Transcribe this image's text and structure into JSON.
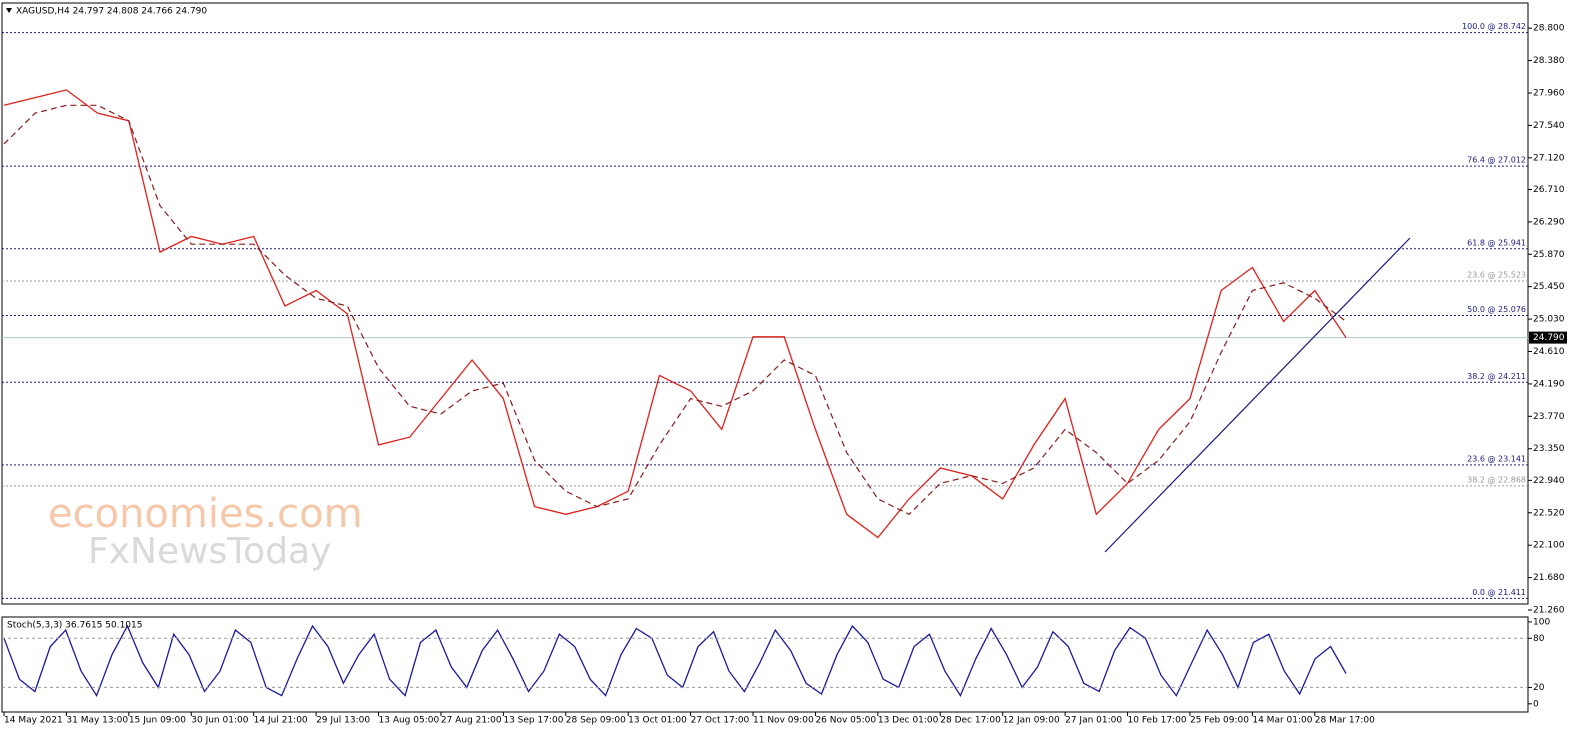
{
  "header": "XAGUSD,H4  24.797 24.808 24.766 24.790",
  "watermark": {
    "line1": "economies.com",
    "line2": "FxNewsToday"
  },
  "chart_data": [
    {
      "type": "line",
      "categories": [
        "14 May 2021",
        null,
        "31 May 13:00",
        null,
        "15 Jun 09:00",
        null,
        "30 Jun 01:00",
        null,
        "14 Jul 21:00",
        null,
        "29 Jul 13:00",
        null,
        "13 Aug 05:00",
        null,
        "27 Aug 21:00",
        null,
        "13 Sep 17:00",
        null,
        "28 Sep 09:00",
        null,
        "13 Oct 01:00",
        null,
        "27 Oct 17:00",
        null,
        "11 Nov 09:00",
        null,
        "26 Nov 05:00",
        null,
        "13 Dec 01:00",
        null,
        "28 Dec 17:00",
        null,
        "12 Jan 09:00",
        null,
        "27 Jan 01:00",
        null,
        "10 Feb 17:00",
        null,
        "25 Feb 09:00",
        null,
        "14 Mar 01:00",
        null,
        "28 Mar 17:00",
        null
      ],
      "series": [
        {
          "color": "#e0201c",
          "values": [
            27.8,
            27.9,
            28.0,
            27.7,
            27.6,
            25.9,
            26.1,
            26.0,
            26.1,
            25.2,
            25.4,
            25.1,
            23.4,
            23.5,
            24.0,
            24.5,
            24.0,
            22.6,
            22.5,
            22.6,
            22.8,
            24.3,
            24.1,
            23.6,
            24.8,
            24.8,
            23.6,
            22.5,
            22.2,
            22.7,
            23.1,
            23.0,
            22.7,
            23.4,
            24.0,
            22.5,
            22.9,
            23.6,
            24.0,
            25.4,
            25.7,
            25.0,
            25.4,
            24.79
          ]
        },
        {
          "color": "#8b1a1a",
          "dashed": true,
          "values": [
            27.3,
            27.7,
            27.8,
            27.8,
            27.6,
            26.5,
            26.0,
            26.0,
            26.0,
            25.6,
            25.3,
            25.2,
            24.4,
            23.9,
            23.8,
            24.1,
            24.2,
            23.2,
            22.8,
            22.6,
            22.7,
            23.4,
            24.0,
            23.9,
            24.1,
            24.5,
            24.3,
            23.3,
            22.7,
            22.5,
            22.9,
            23.0,
            22.9,
            23.1,
            23.6,
            23.3,
            22.9,
            23.2,
            23.7,
            24.6,
            25.4,
            25.5,
            25.3,
            25.0
          ]
        }
      ],
      "ylim": [
        21.26,
        28.88
      ],
      "yticks": [
        {
          "value": 28.8,
          "label": "28.800"
        },
        {
          "value": 28.38,
          "label": "28.380"
        },
        {
          "value": 27.96,
          "label": "27.960"
        },
        {
          "value": 27.54,
          "label": "27.540"
        },
        {
          "value": 27.12,
          "label": "27.120"
        },
        {
          "value": 26.71,
          "label": "26.710"
        },
        {
          "value": 26.29,
          "label": "26.290"
        },
        {
          "value": 25.87,
          "label": "25.870"
        },
        {
          "value": 25.45,
          "label": "25.450"
        },
        {
          "value": 25.03,
          "label": "25.030"
        },
        {
          "value": 24.61,
          "label": "24.610"
        },
        {
          "value": 24.19,
          "label": "24.190"
        },
        {
          "value": 23.77,
          "label": "23.770"
        },
        {
          "value": 23.35,
          "label": "23.350"
        },
        {
          "value": 22.94,
          "label": "22.940"
        },
        {
          "value": 22.52,
          "label": "22.520"
        },
        {
          "value": 22.1,
          "label": "22.100"
        },
        {
          "value": 21.68,
          "label": "21.680"
        },
        {
          "value": 21.26,
          "label": "21.260"
        }
      ],
      "levels": [
        {
          "value": 28.742,
          "label": "100.0 @ 28.742",
          "color": "#1a1a80"
        },
        {
          "value": 27.012,
          "label": "76.4 @ 27.012",
          "color": "#1a1a80"
        },
        {
          "value": 25.941,
          "label": "61.8 @ 25.941",
          "color": "#1a1a80"
        },
        {
          "value": 25.523,
          "label": "23.6 @ 25.523",
          "color": "#9a9a9a"
        },
        {
          "value": 25.076,
          "label": "50.0 @ 25.076",
          "color": "#1a1a80"
        },
        {
          "value": 24.211,
          "label": "38.2 @ 24.211",
          "color": "#1a1a80"
        },
        {
          "value": 23.141,
          "label": "23.6 @ 23.141",
          "color": "#1a1a80"
        },
        {
          "value": 22.868,
          "label": "38.2 @ 22.868",
          "color": "#9a9a9a"
        },
        {
          "value": 21.411,
          "label": "0.0 @ 21.411",
          "color": "#1a1a80"
        }
      ],
      "current_price": {
        "value": 24.79,
        "label": "24.790"
      }
    },
    {
      "type": "line",
      "title": "Stoch(5,3,3) 36.7615 50.1015",
      "series": [
        {
          "color": "#1a1aa0",
          "values": [
            80,
            30,
            15,
            70,
            90,
            40,
            10,
            60,
            95,
            50,
            20,
            85,
            60,
            15,
            40,
            90,
            75,
            20,
            10,
            55,
            95,
            70,
            25,
            60,
            85,
            30,
            10,
            75,
            90,
            45,
            20,
            65,
            90,
            55,
            15,
            40,
            85,
            70,
            30,
            10,
            60,
            92,
            80,
            35,
            20,
            70,
            88,
            40,
            15,
            50,
            90,
            65,
            25,
            12,
            60,
            95,
            75,
            30,
            20,
            70,
            85,
            40,
            10,
            55,
            92,
            60,
            20,
            45,
            88,
            70,
            25,
            15,
            65,
            93,
            80,
            35,
            10,
            50,
            90,
            60,
            20,
            75,
            85,
            40,
            12,
            55,
            70,
            37
          ]
        }
      ],
      "ylim": [
        -10,
        106
      ],
      "yticks": [
        100,
        80,
        20,
        0
      ],
      "levels": [
        80,
        20
      ]
    }
  ]
}
